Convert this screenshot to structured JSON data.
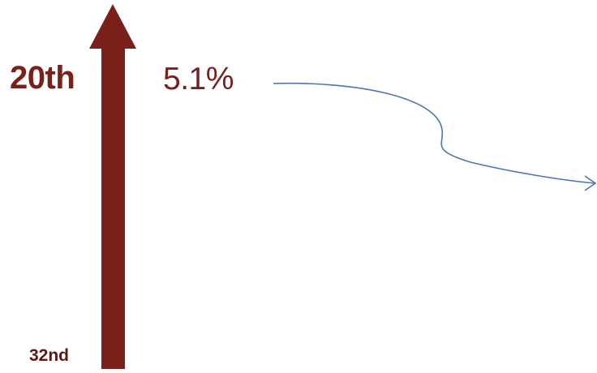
{
  "labels": {
    "rank_top": "20th",
    "percent": "5.1%",
    "rank_bottom": "32nd"
  },
  "colors": {
    "arrow": "#7a1f1a",
    "text": "#7a1f1a",
    "connector": "#4a76b8"
  },
  "icons": {
    "rank_arrow": "up-arrow",
    "connector_arrow": "curved-arrow-right"
  }
}
